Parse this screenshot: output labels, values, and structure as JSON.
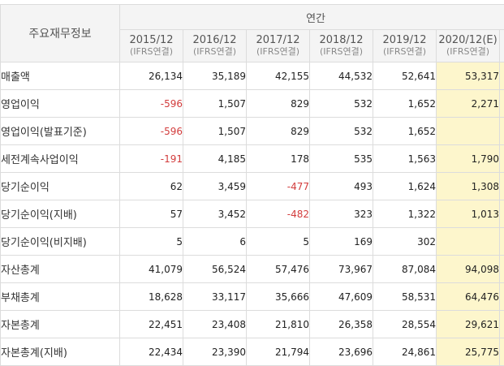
{
  "header": {
    "title": "주요재무정보",
    "annual_label": "연간",
    "periods": [
      {
        "year": "2015/12",
        "basis": "(IFRS연결)",
        "estimate": false
      },
      {
        "year": "2016/12",
        "basis": "(IFRS연결)",
        "estimate": false
      },
      {
        "year": "2017/12",
        "basis": "(IFRS연결)",
        "estimate": false
      },
      {
        "year": "2018/12",
        "basis": "(IFRS연결)",
        "estimate": false
      },
      {
        "year": "2019/12",
        "basis": "(IFRS연결)",
        "estimate": false
      },
      {
        "year": "2020/12(E)",
        "basis": "(IFRS연결)",
        "estimate": true
      }
    ]
  },
  "colors": {
    "negative": "#d23c3c",
    "estimate_bg": "#fdf6cc",
    "header_bg": "#f4f4f4",
    "border": "#dcdcdc"
  },
  "rows": [
    {
      "label": "매출액",
      "indent": false,
      "values": [
        "26,134",
        "35,189",
        "42,155",
        "44,532",
        "52,641",
        "53,317"
      ]
    },
    {
      "label": "영업이익",
      "indent": false,
      "values": [
        "-596",
        "1,507",
        "829",
        "532",
        "1,652",
        "2,271"
      ]
    },
    {
      "label": "영업이익(발표기준)",
      "indent": false,
      "values": [
        "-596",
        "1,507",
        "829",
        "532",
        "1,652",
        ""
      ]
    },
    {
      "label": "세전계속사업이익",
      "indent": false,
      "values": [
        "-191",
        "4,185",
        "178",
        "535",
        "1,563",
        "1,790"
      ]
    },
    {
      "label": "당기순이익",
      "indent": false,
      "values": [
        "62",
        "3,459",
        "-477",
        "493",
        "1,624",
        "1,308"
      ]
    },
    {
      "label": "당기순이익(지배)",
      "indent": true,
      "values": [
        "57",
        "3,452",
        "-482",
        "323",
        "1,322",
        "1,013"
      ]
    },
    {
      "label": "당기순이익(비지배)",
      "indent": true,
      "values": [
        "5",
        "6",
        "5",
        "169",
        "302",
        ""
      ]
    },
    {
      "label": "자산총계",
      "indent": false,
      "values": [
        "41,079",
        "56,524",
        "57,476",
        "73,967",
        "87,084",
        "94,098"
      ]
    },
    {
      "label": "부채총계",
      "indent": false,
      "values": [
        "18,628",
        "33,117",
        "35,666",
        "47,609",
        "58,531",
        "64,476"
      ]
    },
    {
      "label": "자본총계",
      "indent": false,
      "values": [
        "22,451",
        "23,408",
        "21,810",
        "26,358",
        "28,554",
        "29,621"
      ]
    },
    {
      "label": "자본총계(지배)",
      "indent": true,
      "values": [
        "22,434",
        "23,390",
        "21,794",
        "23,696",
        "24,861",
        "25,775"
      ]
    }
  ]
}
